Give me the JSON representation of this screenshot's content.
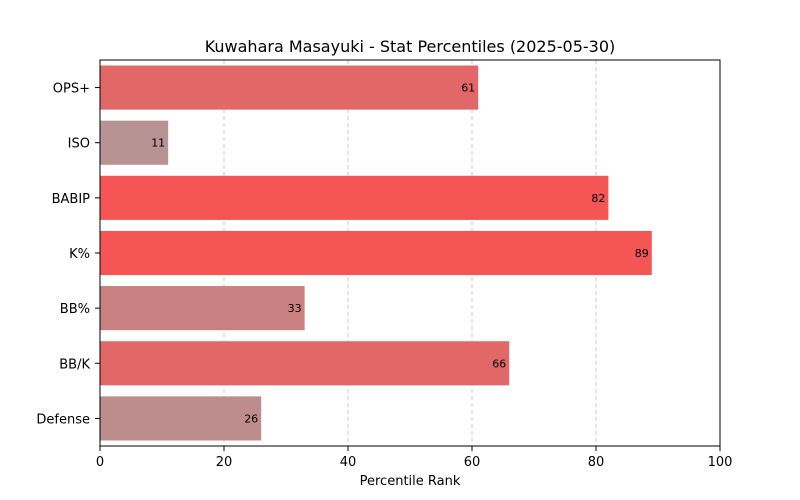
{
  "chart_data": {
    "type": "bar",
    "orientation": "horizontal",
    "title": "Kuwahara Masayuki - Stat Percentiles (2025-05-30)",
    "xlabel": "Percentile Rank",
    "ylabel": "",
    "xlim": [
      0,
      100
    ],
    "xticks": [
      "0",
      "20",
      "40",
      "60",
      "80",
      "100"
    ],
    "grid": "x-dashed",
    "categories": [
      "OPS+",
      "ISO",
      "BABIP",
      "K%",
      "BB%",
      "BB/K",
      "Defense"
    ],
    "values": [
      61,
      11,
      82,
      89,
      33,
      66,
      26
    ],
    "colors": [
      "#e26868",
      "#b89393",
      "#f55555",
      "#f55555",
      "#c98080",
      "#e26868",
      "#bd8d8d"
    ]
  }
}
